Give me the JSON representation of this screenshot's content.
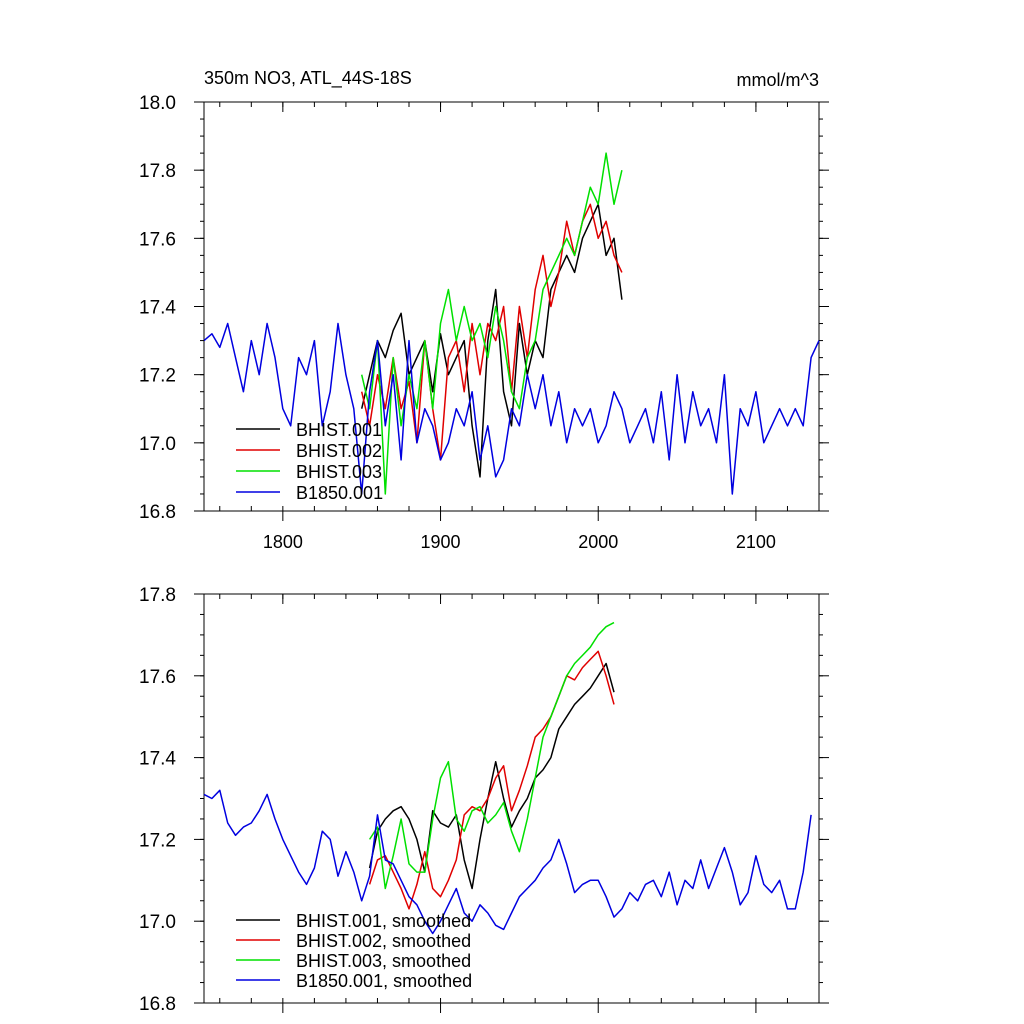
{
  "title_left": "350m NO3, ATL_44S-18S",
  "title_right": "mmol/m^3",
  "colors": {
    "BHIST.001": "#000000",
    "BHIST.002": "#e00000",
    "BHIST.003": "#00e000",
    "B1850.001": "#0000e0"
  },
  "chart_data": [
    {
      "type": "line",
      "xlim": [
        1750,
        2140
      ],
      "ylim": [
        16.8,
        18.0
      ],
      "x_ticks": [
        1800,
        1900,
        2000,
        2100
      ],
      "x_tick_labels": [
        "1800",
        "1900",
        "2000",
        "2100"
      ],
      "y_ticks": [
        16.8,
        17.0,
        17.2,
        17.4,
        17.6,
        17.8,
        18.0
      ],
      "y_tick_labels": [
        "16.8",
        "17.0",
        "17.2",
        "17.4",
        "17.6",
        "17.8",
        "18.0"
      ],
      "legend_position": "bottom-left",
      "series": [
        {
          "name": "BHIST.001",
          "color": "#000000",
          "x": [
            1850,
            1855,
            1860,
            1865,
            1870,
            1875,
            1880,
            1885,
            1890,
            1895,
            1900,
            1905,
            1910,
            1915,
            1920,
            1925,
            1930,
            1935,
            1940,
            1945,
            1950,
            1955,
            1960,
            1965,
            1970,
            1975,
            1980,
            1985,
            1990,
            1995,
            2000,
            2005,
            2010,
            2015
          ],
          "y": [
            17.1,
            17.2,
            17.3,
            17.25,
            17.33,
            17.38,
            17.2,
            17.25,
            17.3,
            17.15,
            17.32,
            17.2,
            17.25,
            17.3,
            17.05,
            16.9,
            17.3,
            17.45,
            17.15,
            17.05,
            17.35,
            17.2,
            17.3,
            17.25,
            17.45,
            17.5,
            17.55,
            17.5,
            17.6,
            17.65,
            17.7,
            17.55,
            17.6,
            17.42
          ]
        },
        {
          "name": "BHIST.002",
          "color": "#e00000",
          "x": [
            1850,
            1855,
            1860,
            1865,
            1870,
            1875,
            1880,
            1885,
            1890,
            1895,
            1900,
            1905,
            1910,
            1915,
            1920,
            1925,
            1930,
            1935,
            1940,
            1945,
            1950,
            1955,
            1960,
            1965,
            1970,
            1975,
            1980,
            1985,
            1990,
            1995,
            2000,
            2005,
            2010,
            2015
          ],
          "y": [
            17.15,
            17.05,
            17.2,
            17.1,
            17.25,
            17.1,
            17.18,
            17.0,
            17.3,
            17.1,
            16.95,
            17.25,
            17.3,
            17.15,
            17.35,
            17.2,
            17.35,
            17.3,
            17.4,
            17.15,
            17.4,
            17.25,
            17.45,
            17.55,
            17.4,
            17.5,
            17.65,
            17.55,
            17.65,
            17.7,
            17.6,
            17.65,
            17.55,
            17.5
          ]
        },
        {
          "name": "BHIST.003",
          "color": "#00e000",
          "x": [
            1850,
            1855,
            1860,
            1865,
            1870,
            1875,
            1880,
            1885,
            1890,
            1895,
            1900,
            1905,
            1910,
            1915,
            1920,
            1925,
            1930,
            1935,
            1940,
            1945,
            1950,
            1955,
            1960,
            1965,
            1970,
            1975,
            1980,
            1985,
            1990,
            1995,
            2000,
            2005,
            2010,
            2015
          ],
          "y": [
            17.2,
            17.1,
            17.3,
            16.85,
            17.25,
            17.05,
            17.2,
            17.1,
            17.3,
            17.1,
            17.35,
            17.45,
            17.3,
            17.4,
            17.3,
            17.35,
            17.25,
            17.4,
            17.3,
            17.15,
            17.1,
            17.25,
            17.3,
            17.45,
            17.5,
            17.55,
            17.6,
            17.55,
            17.65,
            17.75,
            17.7,
            17.85,
            17.7,
            17.8
          ]
        },
        {
          "name": "B1850.001",
          "color": "#0000e0",
          "x": [
            1750,
            1755,
            1760,
            1765,
            1770,
            1775,
            1780,
            1785,
            1790,
            1795,
            1800,
            1805,
            1810,
            1815,
            1820,
            1825,
            1830,
            1835,
            1840,
            1845,
            1850,
            1855,
            1860,
            1865,
            1870,
            1875,
            1880,
            1885,
            1890,
            1895,
            1900,
            1905,
            1910,
            1915,
            1920,
            1925,
            1930,
            1935,
            1940,
            1945,
            1950,
            1955,
            1960,
            1965,
            1970,
            1975,
            1980,
            1985,
            1990,
            1995,
            2000,
            2005,
            2010,
            2015,
            2020,
            2025,
            2030,
            2035,
            2040,
            2045,
            2050,
            2055,
            2060,
            2065,
            2070,
            2075,
            2080,
            2085,
            2090,
            2095,
            2100,
            2105,
            2110,
            2115,
            2120,
            2125,
            2130,
            2135,
            2140
          ],
          "y": [
            17.3,
            17.32,
            17.28,
            17.35,
            17.25,
            17.15,
            17.3,
            17.2,
            17.35,
            17.25,
            17.1,
            17.05,
            17.25,
            17.2,
            17.3,
            17.05,
            17.15,
            17.35,
            17.2,
            17.1,
            16.85,
            17.15,
            17.3,
            17.05,
            17.2,
            16.95,
            17.3,
            17.0,
            17.1,
            17.05,
            16.95,
            17.0,
            17.1,
            17.05,
            17.15,
            16.95,
            17.05,
            16.9,
            16.95,
            17.1,
            17.05,
            17.2,
            17.1,
            17.2,
            17.05,
            17.15,
            17.0,
            17.1,
            17.05,
            17.1,
            17.0,
            17.05,
            17.15,
            17.1,
            17.0,
            17.05,
            17.1,
            17.0,
            17.15,
            16.95,
            17.2,
            17.0,
            17.15,
            17.05,
            17.1,
            17.0,
            17.2,
            16.85,
            17.1,
            17.05,
            17.15,
            17.0,
            17.05,
            17.1,
            17.05,
            17.1,
            17.05,
            17.25,
            17.3
          ]
        }
      ]
    },
    {
      "type": "line",
      "xlim": [
        1750,
        2140
      ],
      "ylim": [
        16.8,
        17.8
      ],
      "x_ticks": [
        1800,
        1900,
        2000,
        2100
      ],
      "y_ticks": [
        16.8,
        17.0,
        17.2,
        17.4,
        17.6,
        17.8
      ],
      "y_tick_labels": [
        "16.8",
        "17.0",
        "17.2",
        "17.4",
        "17.6",
        "17.8"
      ],
      "legend_position": "bottom-left",
      "series": [
        {
          "name": "BHIST.001, smoothed",
          "color": "#000000",
          "x": [
            1855,
            1860,
            1865,
            1870,
            1875,
            1880,
            1885,
            1890,
            1895,
            1900,
            1905,
            1910,
            1915,
            1920,
            1925,
            1930,
            1935,
            1940,
            1945,
            1950,
            1955,
            1960,
            1965,
            1970,
            1975,
            1980,
            1985,
            1990,
            1995,
            2000,
            2005,
            2010
          ],
          "y": [
            17.13,
            17.22,
            17.25,
            17.27,
            17.28,
            17.25,
            17.2,
            17.12,
            17.27,
            17.24,
            17.23,
            17.26,
            17.15,
            17.08,
            17.2,
            17.3,
            17.39,
            17.3,
            17.23,
            17.27,
            17.3,
            17.35,
            17.37,
            17.4,
            17.47,
            17.5,
            17.53,
            17.55,
            17.57,
            17.6,
            17.63,
            17.56
          ]
        },
        {
          "name": "BHIST.002, smoothed",
          "color": "#e00000",
          "x": [
            1855,
            1860,
            1865,
            1870,
            1875,
            1880,
            1885,
            1890,
            1895,
            1900,
            1905,
            1910,
            1915,
            1920,
            1925,
            1930,
            1935,
            1940,
            1945,
            1950,
            1955,
            1960,
            1965,
            1970,
            1975,
            1980,
            1985,
            1990,
            1995,
            2000,
            2005,
            2010
          ],
          "y": [
            17.09,
            17.15,
            17.16,
            17.12,
            17.08,
            17.03,
            17.09,
            17.17,
            17.08,
            17.06,
            17.1,
            17.15,
            17.26,
            17.28,
            17.27,
            17.3,
            17.35,
            17.38,
            17.27,
            17.32,
            17.38,
            17.45,
            17.47,
            17.5,
            17.55,
            17.6,
            17.59,
            17.62,
            17.64,
            17.66,
            17.6,
            17.53
          ]
        },
        {
          "name": "BHIST.003, smoothed",
          "color": "#00e000",
          "x": [
            1855,
            1860,
            1865,
            1870,
            1875,
            1880,
            1885,
            1890,
            1895,
            1900,
            1905,
            1910,
            1915,
            1920,
            1925,
            1930,
            1935,
            1940,
            1945,
            1950,
            1955,
            1960,
            1965,
            1970,
            1975,
            1980,
            1985,
            1990,
            1995,
            2000,
            2005,
            2010
          ],
          "y": [
            17.2,
            17.23,
            17.08,
            17.16,
            17.25,
            17.14,
            17.12,
            17.12,
            17.25,
            17.35,
            17.39,
            17.25,
            17.22,
            17.27,
            17.28,
            17.24,
            17.26,
            17.29,
            17.22,
            17.17,
            17.25,
            17.35,
            17.45,
            17.5,
            17.55,
            17.6,
            17.63,
            17.65,
            17.67,
            17.7,
            17.72,
            17.73
          ]
        },
        {
          "name": "B1850.001, smoothed",
          "color": "#0000e0",
          "x": [
            1750,
            1755,
            1760,
            1765,
            1770,
            1775,
            1780,
            1785,
            1790,
            1795,
            1800,
            1805,
            1810,
            1815,
            1820,
            1825,
            1830,
            1835,
            1840,
            1845,
            1850,
            1855,
            1860,
            1865,
            1870,
            1875,
            1880,
            1885,
            1890,
            1895,
            1900,
            1905,
            1910,
            1915,
            1920,
            1925,
            1930,
            1935,
            1940,
            1945,
            1950,
            1955,
            1960,
            1965,
            1970,
            1975,
            1980,
            1985,
            1990,
            1995,
            2000,
            2005,
            2010,
            2015,
            2020,
            2025,
            2030,
            2035,
            2040,
            2045,
            2050,
            2055,
            2060,
            2065,
            2070,
            2075,
            2080,
            2085,
            2090,
            2095,
            2100,
            2105,
            2110,
            2115,
            2120,
            2125,
            2130,
            2135
          ],
          "y": [
            17.31,
            17.3,
            17.32,
            17.24,
            17.21,
            17.23,
            17.24,
            17.27,
            17.31,
            17.25,
            17.2,
            17.16,
            17.12,
            17.09,
            17.13,
            17.22,
            17.2,
            17.11,
            17.17,
            17.12,
            17.05,
            17.11,
            17.26,
            17.15,
            17.14,
            17.1,
            17.06,
            17.04,
            17.0,
            16.97,
            17.0,
            17.04,
            17.08,
            17.02,
            17.0,
            17.04,
            17.02,
            16.99,
            16.98,
            17.02,
            17.06,
            17.08,
            17.1,
            17.13,
            17.15,
            17.2,
            17.14,
            17.07,
            17.09,
            17.1,
            17.1,
            17.06,
            17.01,
            17.03,
            17.07,
            17.05,
            17.09,
            17.1,
            17.06,
            17.12,
            17.04,
            17.1,
            17.08,
            17.15,
            17.08,
            17.13,
            17.18,
            17.12,
            17.04,
            17.07,
            17.16,
            17.09,
            17.07,
            17.1,
            17.03,
            17.03,
            17.12,
            17.26
          ]
        }
      ]
    }
  ]
}
